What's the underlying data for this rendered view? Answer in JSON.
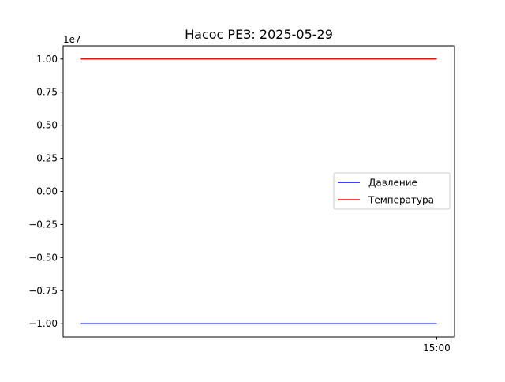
{
  "chart_data": {
    "type": "line",
    "title": "Насос РЕЗ: 2025-05-29",
    "xlabel": "",
    "ylabel": "",
    "y_scale_label": "1e7",
    "y_multiplier": 10000000,
    "ylim": [
      -1.1,
      1.1
    ],
    "xlim": [
      -0.05,
      1.05
    ],
    "yticks": [
      1.0,
      0.75,
      0.5,
      0.25,
      0.0,
      -0.25,
      -0.5,
      -0.75,
      -1.0
    ],
    "ytick_labels": [
      "1.00",
      "0.75",
      "0.50",
      "0.25",
      "0.00",
      "−0.25",
      "−0.50",
      "−0.75",
      "−1.00"
    ],
    "xticks": [
      1.0
    ],
    "xtick_labels": [
      "15:00"
    ],
    "grid": false,
    "legend_position": "center-right",
    "series": [
      {
        "name": "Давление",
        "color": "#0000ff",
        "x": [
          0.0,
          1.0
        ],
        "values": [
          -1.0,
          -1.0
        ]
      },
      {
        "name": "Температура",
        "color": "#ff0000",
        "x": [
          0.0,
          1.0
        ],
        "values": [
          1.0,
          1.0
        ]
      }
    ]
  }
}
